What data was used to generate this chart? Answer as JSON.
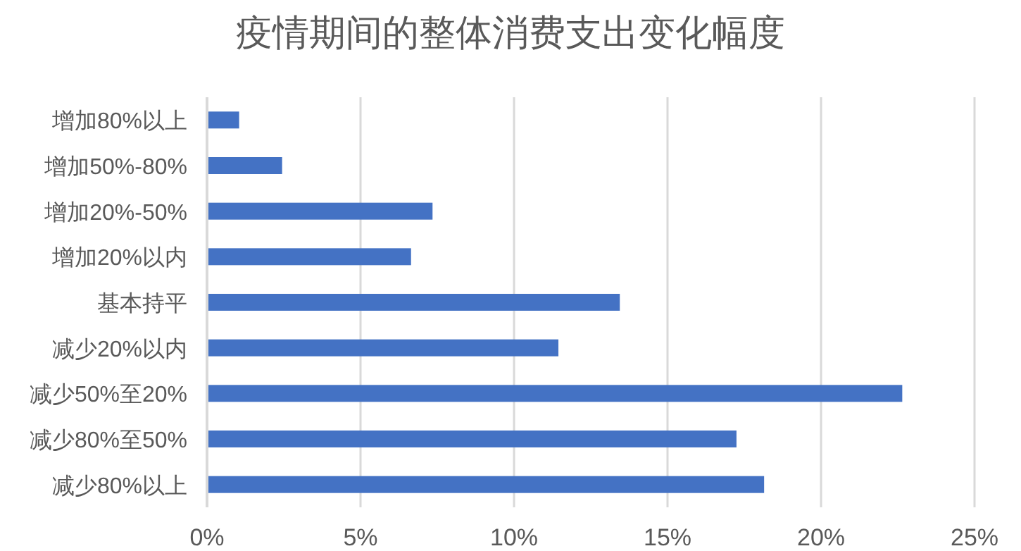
{
  "chart_data": {
    "type": "bar",
    "orientation": "horizontal",
    "title": "疫情期间的整体消费支出变化幅度",
    "categories": [
      "增加80%以上",
      "增加50%-80%",
      "增加20%-50%",
      "增加20%以内",
      "基本持平",
      "减少20%以内",
      "减少50%至20%",
      "减少80%至50%",
      "减少80%以上"
    ],
    "values": [
      1.0,
      2.4,
      7.3,
      6.6,
      13.4,
      11.4,
      22.6,
      17.2,
      18.1
    ],
    "color": "#4472c4",
    "xlim": [
      0,
      25
    ],
    "xticks": [
      {
        "value": 0,
        "label": "0%"
      },
      {
        "value": 5,
        "label": "5%"
      },
      {
        "value": 10,
        "label": "10%"
      },
      {
        "value": 15,
        "label": "15%"
      },
      {
        "value": 20,
        "label": "20%"
      },
      {
        "value": 25,
        "label": "25%"
      }
    ],
    "grid": "x"
  }
}
